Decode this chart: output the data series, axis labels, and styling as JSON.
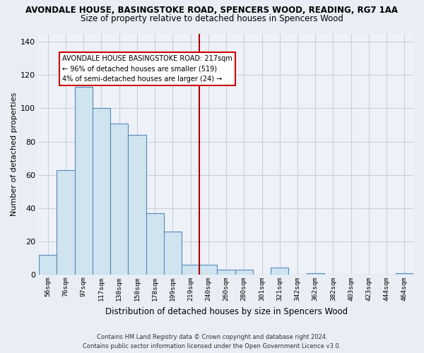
{
  "title": "AVONDALE HOUSE, BASINGSTOKE ROAD, SPENCERS WOOD, READING, RG7 1AA",
  "subtitle": "Size of property relative to detached houses in Spencers Wood",
  "xlabel": "Distribution of detached houses by size in Spencers Wood",
  "ylabel": "Number of detached properties",
  "bar_labels": [
    "56sqm",
    "76sqm",
    "97sqm",
    "117sqm",
    "138sqm",
    "158sqm",
    "178sqm",
    "199sqm",
    "219sqm",
    "240sqm",
    "260sqm",
    "280sqm",
    "301sqm",
    "321sqm",
    "342sqm",
    "362sqm",
    "382sqm",
    "403sqm",
    "423sqm",
    "444sqm",
    "464sqm"
  ],
  "bar_values": [
    12,
    63,
    113,
    100,
    91,
    84,
    37,
    26,
    6,
    6,
    3,
    3,
    0,
    4,
    0,
    1,
    0,
    0,
    0,
    0,
    1
  ],
  "bar_color": "#d0e4f0",
  "bar_edge_color": "#5588bb",
  "vline_x_index": 8,
  "vline_color": "#aa0000",
  "ylim": [
    0,
    145
  ],
  "yticks": [
    0,
    20,
    40,
    60,
    80,
    100,
    120,
    140
  ],
  "annotation_title": "AVONDALE HOUSE BASINGSTOKE ROAD: 217sqm",
  "annotation_line1": "← 96% of detached houses are smaller (519)",
  "annotation_line2": "4% of semi-detached houses are larger (24) →",
  "footer_line1": "Contains HM Land Registry data © Crown copyright and database right 2024.",
  "footer_line2": "Contains public sector information licensed under the Open Government Licence v3.0.",
  "background_color": "#e8eef4",
  "plot_bg_color": "#eef2f8",
  "grid_color": "#c8d0dc",
  "title_fontsize": 8.5,
  "subtitle_fontsize": 8.5,
  "xlabel_fontsize": 8.5,
  "ylabel_fontsize": 8.0
}
